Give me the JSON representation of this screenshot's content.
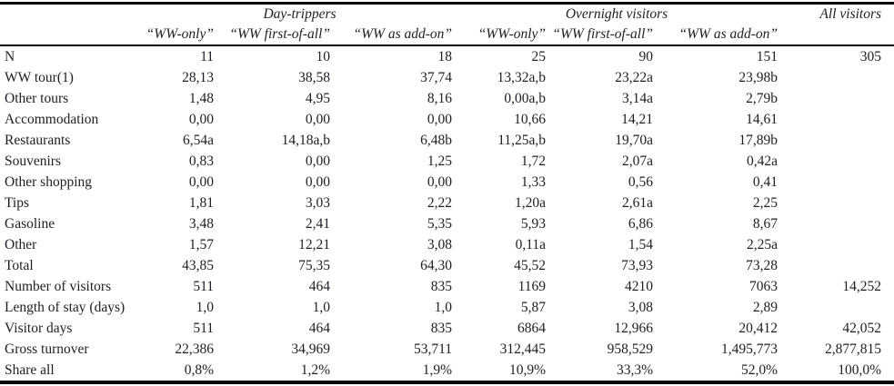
{
  "table": {
    "title_semantic": "visitor-expenditure-table",
    "group_headers": [
      {
        "label": "",
        "span": 1
      },
      {
        "label": "Day-trippers",
        "span": 3
      },
      {
        "label": "Overnight visitors",
        "span": 3
      },
      {
        "label": "All visitors",
        "span": 1
      }
    ],
    "col_headers": [
      "",
      "“WW-only”",
      "“WW first-of-all”",
      "“WW as add-on”",
      "“WW-only”",
      "“WW first-of-all”",
      "“WW as add-on”",
      ""
    ],
    "rows": [
      {
        "label": "N",
        "values": [
          "11",
          "10",
          "18",
          "25",
          "90",
          "151",
          "305"
        ]
      },
      {
        "label": "WW tour(1)",
        "values": [
          "28,13",
          "38,58",
          "37,74",
          "13,32a,b",
          "23,22a",
          "23,98b",
          ""
        ]
      },
      {
        "label": "Other tours",
        "values": [
          "1,48",
          "4,95",
          "8,16",
          "0,00a,b",
          "3,14a",
          "2,79b",
          ""
        ]
      },
      {
        "label": "Accommodation",
        "values": [
          "0,00",
          "0,00",
          "0,00",
          "10,66",
          "14,21",
          "14,61",
          ""
        ]
      },
      {
        "label": "Restaurants",
        "values": [
          "6,54a",
          "14,18a,b",
          "6,48b",
          "11,25a,b",
          "19,70a",
          "17,89b",
          ""
        ]
      },
      {
        "label": "Souvenirs",
        "values": [
          "0,83",
          "0,00",
          "1,25",
          "1,72",
          "2,07a",
          "0,42a",
          ""
        ]
      },
      {
        "label": "Other shopping",
        "values": [
          "0,00",
          "0,00",
          "0,00",
          "1,33",
          "0,56",
          "0,41",
          ""
        ]
      },
      {
        "label": "Tips",
        "values": [
          "1,81",
          "3,03",
          "2,22",
          "1,20a",
          "2,61a",
          "2,25",
          ""
        ]
      },
      {
        "label": "Gasoline",
        "values": [
          "3,48",
          "2,41",
          "5,35",
          "5,93",
          "6,86",
          "8,67",
          ""
        ]
      },
      {
        "label": "Other",
        "values": [
          "1,57",
          "12,21",
          "3,08",
          "0,11a",
          "1,54",
          "2,25a",
          ""
        ]
      },
      {
        "label": "Total",
        "values": [
          "43,85",
          "75,35",
          "64,30",
          "45,52",
          "73,93",
          "73,28",
          ""
        ]
      },
      {
        "label": "Number of visitors",
        "values": [
          "511",
          "464",
          "835",
          "1169",
          "4210",
          "7063",
          "14,252"
        ]
      },
      {
        "label": "Length of stay (days)",
        "values": [
          "1,0",
          "1,0",
          "1,0",
          "5,87",
          "3,08",
          "2,89",
          ""
        ]
      },
      {
        "label": "Visitor days",
        "values": [
          "511",
          "464",
          "835",
          "6864",
          "12,966",
          "20,412",
          "42,052"
        ]
      },
      {
        "label": "Gross turnover",
        "values": [
          "22,386",
          "34,969",
          "53,711",
          "312,445",
          "958,529",
          "1,495,773",
          "2,877,815"
        ]
      },
      {
        "label": "Share all",
        "values": [
          "0,8%",
          "1,2%",
          "1,9%",
          "10,9%",
          "33,3%",
          "52,0%",
          "100,0%"
        ]
      }
    ],
    "colors": {
      "text": "#1e1e24",
      "border": "#000000",
      "background": "#ffffff"
    }
  }
}
